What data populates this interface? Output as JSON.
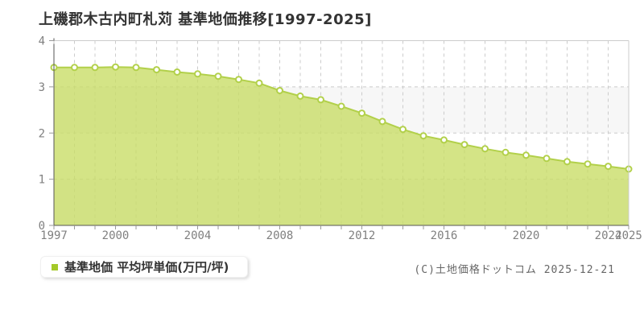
{
  "title": "上磯郡木古内町札苅 基準地価推移[1997-2025]",
  "legend": {
    "label": "基準地価 平均坪単価(万円/坪)",
    "marker_color": "#a4c929"
  },
  "copyright": "(C)土地価格ドットコム 2025-12-21",
  "chart_data": {
    "type": "area",
    "title": "上磯郡木古内町札苅 基準地価推移[1997-2025]",
    "x": [
      1997,
      1998,
      1999,
      2000,
      2001,
      2002,
      2003,
      2004,
      2005,
      2006,
      2007,
      2008,
      2009,
      2010,
      2011,
      2012,
      2013,
      2014,
      2015,
      2016,
      2017,
      2018,
      2019,
      2020,
      2021,
      2022,
      2023,
      2024,
      2025
    ],
    "series": [
      {
        "name": "基準地価 平均坪単価(万円/坪)",
        "values": [
          3.42,
          3.42,
          3.42,
          3.43,
          3.42,
          3.37,
          3.32,
          3.28,
          3.23,
          3.16,
          3.08,
          2.92,
          2.8,
          2.72,
          2.58,
          2.43,
          2.25,
          2.08,
          1.94,
          1.85,
          1.75,
          1.66,
          1.58,
          1.52,
          1.45,
          1.38,
          1.33,
          1.28,
          1.22
        ]
      }
    ],
    "ylim": [
      0,
      4
    ],
    "yticks": [
      0,
      1,
      2,
      3,
      4
    ],
    "xtick_years": [
      1997,
      2000,
      2004,
      2008,
      2012,
      2016,
      2020,
      2024,
      2025
    ],
    "grid": "dashed",
    "legend_position": "bottom-left",
    "colors": {
      "area_fill": "#c8dc64",
      "line": "#b2d04a",
      "marker_fill": "#ffffff",
      "legend_marker": "#a4c929",
      "grid": "#cccccc",
      "axis": "#555555",
      "border": "#cccccc",
      "band": "#f7f7f7",
      "tick_label": "#808080"
    }
  }
}
